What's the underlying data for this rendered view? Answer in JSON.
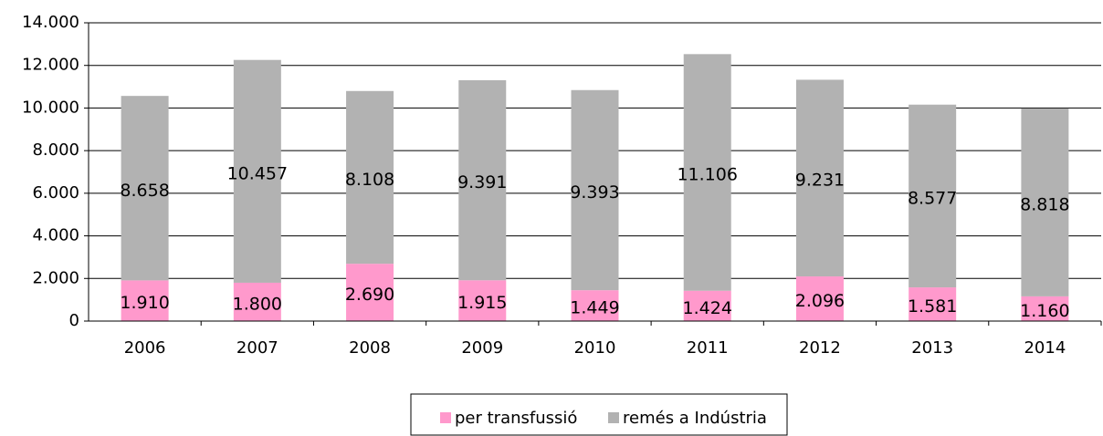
{
  "chart_data": {
    "type": "stacked_bar",
    "categories": [
      "2006",
      "2007",
      "2008",
      "2009",
      "2010",
      "2011",
      "2012",
      "2013",
      "2014"
    ],
    "series": [
      {
        "name": "per transfussió",
        "color": "#ff99cc",
        "values": [
          1910,
          1800,
          2690,
          1915,
          1449,
          1424,
          2096,
          1581,
          1160
        ],
        "value_labels": [
          "1.910",
          "1.800",
          "2.690",
          "1.915",
          "1.449",
          "1.424",
          "2.096",
          "1.581",
          "1.160"
        ]
      },
      {
        "name": "remés a Indústria",
        "color": "#b2b2b2",
        "values": [
          8658,
          10457,
          8108,
          9391,
          9393,
          11106,
          9231,
          8577,
          8818
        ],
        "value_labels": [
          "8.658",
          "10.457",
          "8.108",
          "9.391",
          "9.393",
          "11.106",
          "9.231",
          "8.577",
          "8.818"
        ]
      }
    ],
    "ylim": [
      0,
      14000
    ],
    "yticks": [
      0,
      {
        "value": 2000,
        "label": "2.000"
      },
      {
        "value": 4000,
        "label": "4.000"
      },
      {
        "value": 6000,
        "label": "6.000"
      },
      {
        "value": 8000,
        "label": "8.000"
      },
      {
        "value": 10000,
        "label": "10.000"
      },
      {
        "value": 12000,
        "label": "12.000"
      },
      {
        "value": 14000,
        "label": "14.000"
      }
    ],
    "grid": true,
    "legend": "bottom"
  }
}
